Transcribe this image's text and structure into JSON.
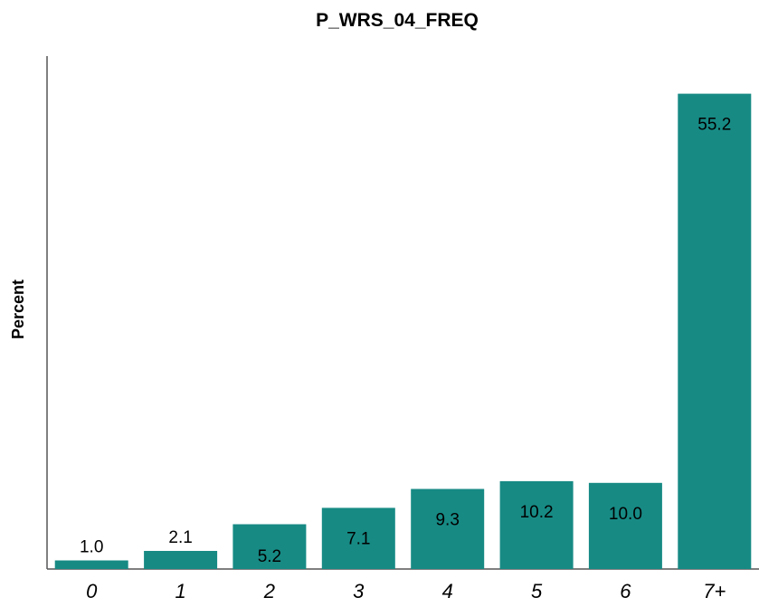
{
  "chart_data": {
    "type": "bar",
    "title": "P_WRS_04_FREQ",
    "xlabel": "",
    "ylabel": "Percent",
    "categories": [
      "0",
      "1",
      "2",
      "3",
      "4",
      "5",
      "6",
      "7+"
    ],
    "values": [
      1.0,
      2.1,
      5.2,
      7.1,
      9.3,
      10.2,
      10.0,
      55.2
    ],
    "data_labels": [
      "1.0",
      "2.1",
      "5.2",
      "7.1",
      "9.3",
      "10.2",
      "10.0",
      "55.2"
    ],
    "ylim": [
      0,
      60
    ],
    "grid": false,
    "legend": "none",
    "bar_color": "#178a84"
  }
}
